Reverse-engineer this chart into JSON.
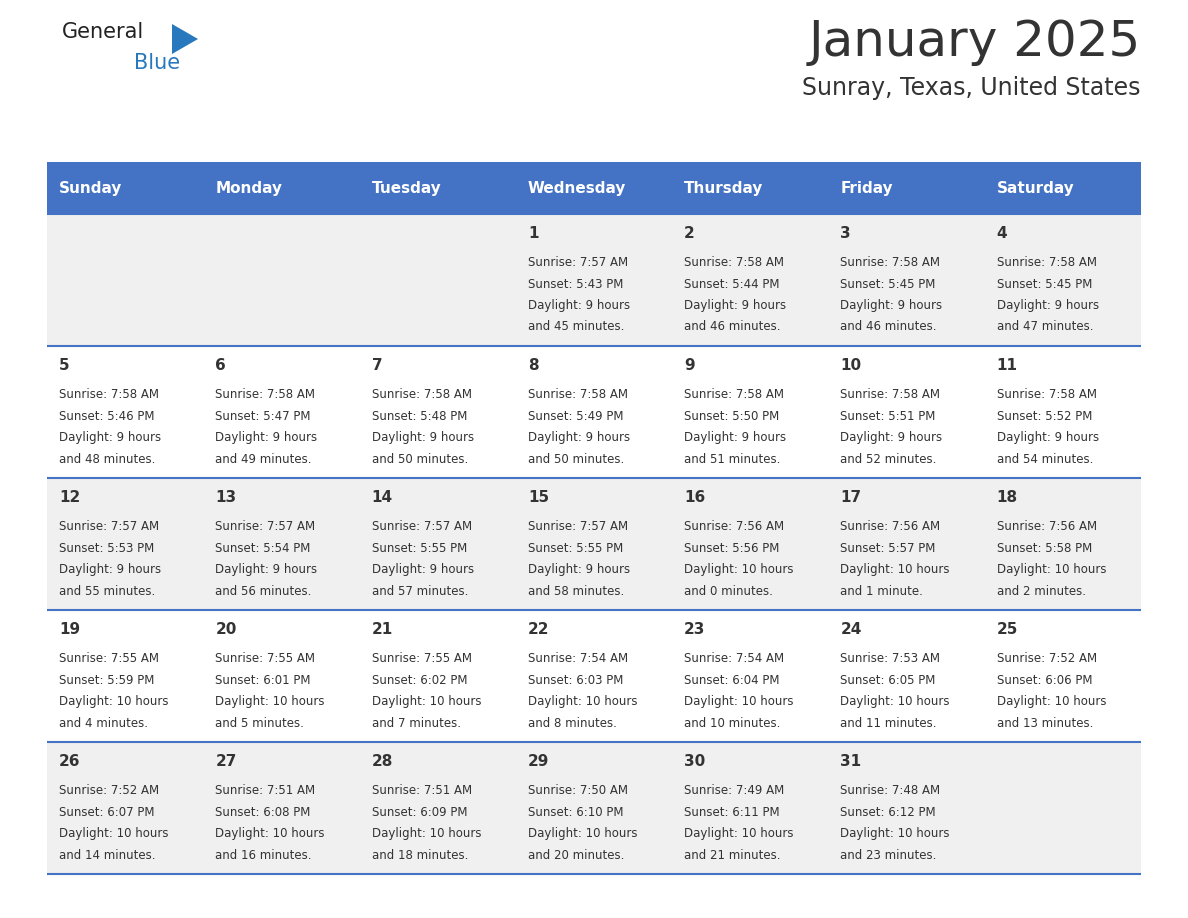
{
  "title": "January 2025",
  "subtitle": "Sunray, Texas, United States",
  "header_color": "#4472c4",
  "header_text_color": "#ffffff",
  "day_names": [
    "Sunday",
    "Monday",
    "Tuesday",
    "Wednesday",
    "Thursday",
    "Friday",
    "Saturday"
  ],
  "background_color": "#ffffff",
  "cell_bg_even": "#f0f0f0",
  "cell_bg_odd": "#ffffff",
  "row_line_color": "#4472c4",
  "text_color": "#333333",
  "days": [
    {
      "date": 1,
      "col": 3,
      "row": 0,
      "sunrise": "7:57 AM",
      "sunset": "5:43 PM",
      "daylight_hours": 9,
      "daylight_minutes": 45
    },
    {
      "date": 2,
      "col": 4,
      "row": 0,
      "sunrise": "7:58 AM",
      "sunset": "5:44 PM",
      "daylight_hours": 9,
      "daylight_minutes": 46
    },
    {
      "date": 3,
      "col": 5,
      "row": 0,
      "sunrise": "7:58 AM",
      "sunset": "5:45 PM",
      "daylight_hours": 9,
      "daylight_minutes": 46
    },
    {
      "date": 4,
      "col": 6,
      "row": 0,
      "sunrise": "7:58 AM",
      "sunset": "5:45 PM",
      "daylight_hours": 9,
      "daylight_minutes": 47
    },
    {
      "date": 5,
      "col": 0,
      "row": 1,
      "sunrise": "7:58 AM",
      "sunset": "5:46 PM",
      "daylight_hours": 9,
      "daylight_minutes": 48
    },
    {
      "date": 6,
      "col": 1,
      "row": 1,
      "sunrise": "7:58 AM",
      "sunset": "5:47 PM",
      "daylight_hours": 9,
      "daylight_minutes": 49
    },
    {
      "date": 7,
      "col": 2,
      "row": 1,
      "sunrise": "7:58 AM",
      "sunset": "5:48 PM",
      "daylight_hours": 9,
      "daylight_minutes": 50
    },
    {
      "date": 8,
      "col": 3,
      "row": 1,
      "sunrise": "7:58 AM",
      "sunset": "5:49 PM",
      "daylight_hours": 9,
      "daylight_minutes": 50
    },
    {
      "date": 9,
      "col": 4,
      "row": 1,
      "sunrise": "7:58 AM",
      "sunset": "5:50 PM",
      "daylight_hours": 9,
      "daylight_minutes": 51
    },
    {
      "date": 10,
      "col": 5,
      "row": 1,
      "sunrise": "7:58 AM",
      "sunset": "5:51 PM",
      "daylight_hours": 9,
      "daylight_minutes": 52
    },
    {
      "date": 11,
      "col": 6,
      "row": 1,
      "sunrise": "7:58 AM",
      "sunset": "5:52 PM",
      "daylight_hours": 9,
      "daylight_minutes": 54
    },
    {
      "date": 12,
      "col": 0,
      "row": 2,
      "sunrise": "7:57 AM",
      "sunset": "5:53 PM",
      "daylight_hours": 9,
      "daylight_minutes": 55
    },
    {
      "date": 13,
      "col": 1,
      "row": 2,
      "sunrise": "7:57 AM",
      "sunset": "5:54 PM",
      "daylight_hours": 9,
      "daylight_minutes": 56
    },
    {
      "date": 14,
      "col": 2,
      "row": 2,
      "sunrise": "7:57 AM",
      "sunset": "5:55 PM",
      "daylight_hours": 9,
      "daylight_minutes": 57
    },
    {
      "date": 15,
      "col": 3,
      "row": 2,
      "sunrise": "7:57 AM",
      "sunset": "5:55 PM",
      "daylight_hours": 9,
      "daylight_minutes": 58
    },
    {
      "date": 16,
      "col": 4,
      "row": 2,
      "sunrise": "7:56 AM",
      "sunset": "5:56 PM",
      "daylight_hours": 10,
      "daylight_minutes": 0
    },
    {
      "date": 17,
      "col": 5,
      "row": 2,
      "sunrise": "7:56 AM",
      "sunset": "5:57 PM",
      "daylight_hours": 10,
      "daylight_minutes": 1
    },
    {
      "date": 18,
      "col": 6,
      "row": 2,
      "sunrise": "7:56 AM",
      "sunset": "5:58 PM",
      "daylight_hours": 10,
      "daylight_minutes": 2
    },
    {
      "date": 19,
      "col": 0,
      "row": 3,
      "sunrise": "7:55 AM",
      "sunset": "5:59 PM",
      "daylight_hours": 10,
      "daylight_minutes": 4
    },
    {
      "date": 20,
      "col": 1,
      "row": 3,
      "sunrise": "7:55 AM",
      "sunset": "6:01 PM",
      "daylight_hours": 10,
      "daylight_minutes": 5
    },
    {
      "date": 21,
      "col": 2,
      "row": 3,
      "sunrise": "7:55 AM",
      "sunset": "6:02 PM",
      "daylight_hours": 10,
      "daylight_minutes": 7
    },
    {
      "date": 22,
      "col": 3,
      "row": 3,
      "sunrise": "7:54 AM",
      "sunset": "6:03 PM",
      "daylight_hours": 10,
      "daylight_minutes": 8
    },
    {
      "date": 23,
      "col": 4,
      "row": 3,
      "sunrise": "7:54 AM",
      "sunset": "6:04 PM",
      "daylight_hours": 10,
      "daylight_minutes": 10
    },
    {
      "date": 24,
      "col": 5,
      "row": 3,
      "sunrise": "7:53 AM",
      "sunset": "6:05 PM",
      "daylight_hours": 10,
      "daylight_minutes": 11
    },
    {
      "date": 25,
      "col": 6,
      "row": 3,
      "sunrise": "7:52 AM",
      "sunset": "6:06 PM",
      "daylight_hours": 10,
      "daylight_minutes": 13
    },
    {
      "date": 26,
      "col": 0,
      "row": 4,
      "sunrise": "7:52 AM",
      "sunset": "6:07 PM",
      "daylight_hours": 10,
      "daylight_minutes": 14
    },
    {
      "date": 27,
      "col": 1,
      "row": 4,
      "sunrise": "7:51 AM",
      "sunset": "6:08 PM",
      "daylight_hours": 10,
      "daylight_minutes": 16
    },
    {
      "date": 28,
      "col": 2,
      "row": 4,
      "sunrise": "7:51 AM",
      "sunset": "6:09 PM",
      "daylight_hours": 10,
      "daylight_minutes": 18
    },
    {
      "date": 29,
      "col": 3,
      "row": 4,
      "sunrise": "7:50 AM",
      "sunset": "6:10 PM",
      "daylight_hours": 10,
      "daylight_minutes": 20
    },
    {
      "date": 30,
      "col": 4,
      "row": 4,
      "sunrise": "7:49 AM",
      "sunset": "6:11 PM",
      "daylight_hours": 10,
      "daylight_minutes": 21
    },
    {
      "date": 31,
      "col": 5,
      "row": 4,
      "sunrise": "7:48 AM",
      "sunset": "6:12 PM",
      "daylight_hours": 10,
      "daylight_minutes": 23
    }
  ],
  "num_rows": 5,
  "logo_general_color": "#222222",
  "logo_blue_color": "#2878be",
  "logo_triangle_color": "#2878be",
  "title_fontsize": 36,
  "subtitle_fontsize": 17,
  "header_fontsize": 11,
  "date_fontsize": 11,
  "cell_fontsize": 8.5
}
